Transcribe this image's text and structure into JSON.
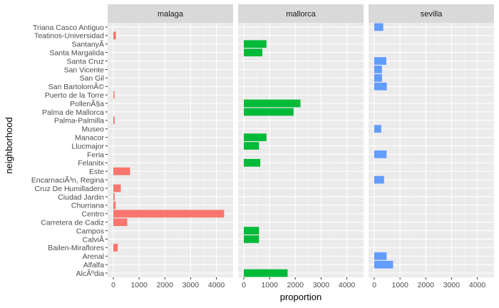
{
  "chart_data": {
    "type": "bar",
    "orientation": "horizontal",
    "xlabel": "proportion",
    "ylabel": "neighborhood",
    "xlim": [
      0,
      4400
    ],
    "xticks": [
      0,
      1000,
      2000,
      3000,
      4000
    ],
    "grid": true,
    "categories": [
      "AlcÃºdia",
      "Alfalfa",
      "Arenal",
      "Bailen-Miraflores",
      "CalviÃ",
      "Campos",
      "Carretera de Cadiz",
      "Centro",
      "Churriana",
      "Ciudad Jardin",
      "Cruz De Humilladero",
      "EncarnaciÃ³n, Regina",
      "Este",
      "Felanitx",
      "Feria",
      "Llucmajor",
      "Manacor",
      "Museo",
      "Palma-Palmilla",
      "Palma de Mallorca",
      "PollenÃ§a",
      "Puerto de la Torre",
      "San BartolomÃ©",
      "San Gil",
      "San Vicente",
      "Santa Cruz",
      "Santa Margalida",
      "SantanyÃ­",
      "Teatinos-Universidad",
      "Triana Casco Antiguo"
    ],
    "facets": [
      {
        "name": "malaga",
        "color": "#F8766D",
        "values": {
          "Teatinos-Universidad": 100,
          "Puerto de la Torre": 30,
          "Palma-Palmilla": 50,
          "Este": 650,
          "Cruz De Humilladero": 290,
          "Ciudad Jardin": 50,
          "Churriana": 90,
          "Centro": 4300,
          "Carretera de Cadiz": 540,
          "Bailen-Miraflores": 170
        }
      },
      {
        "name": "mallorca",
        "color": "#00BA38",
        "values": {
          "SantanyÃ­": 880,
          "Santa Margalida": 720,
          "PollenÃ§a": 2200,
          "Palma de Mallorca": 1930,
          "Manacor": 880,
          "Llucmajor": 590,
          "Felanitx": 640,
          "Campos": 590,
          "CalviÃ": 590,
          "AlcÃºdia": 1700
        }
      },
      {
        "name": "sevilla",
        "color": "#619CFF",
        "values": {
          "Triana Casco Antiguo": 350,
          "Santa Cruz": 470,
          "San Vicente": 300,
          "San Gil": 300,
          "San BartolomÃ©": 490,
          "Museo": 270,
          "Feria": 480,
          "EncarnaciÃ³n, Regina": 380,
          "Arenal": 480,
          "Alfalfa": 730
        }
      }
    ]
  }
}
